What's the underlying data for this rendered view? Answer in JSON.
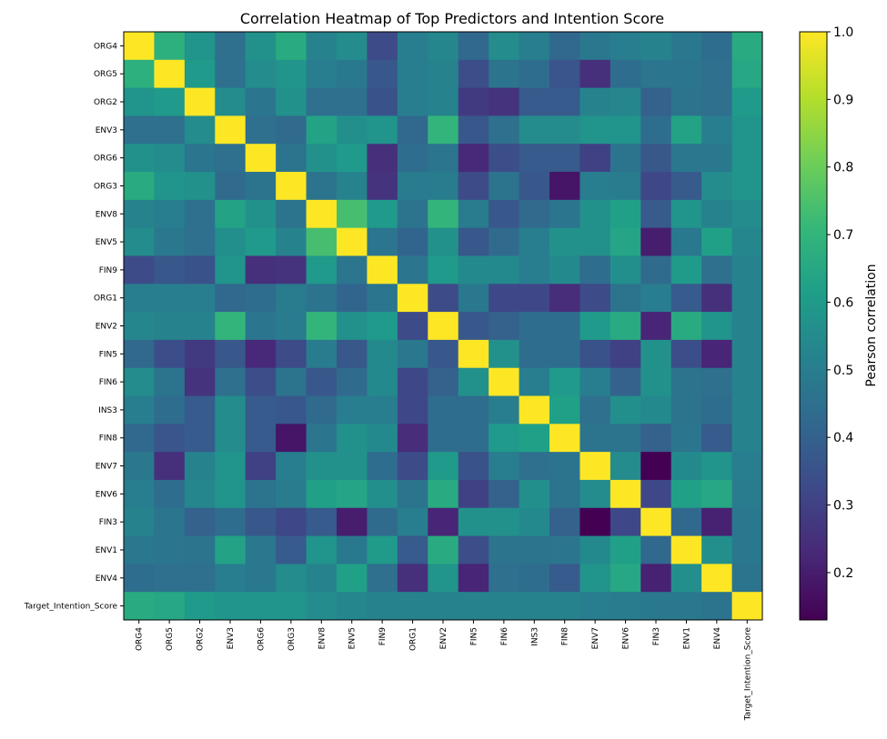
{
  "chart_data": {
    "type": "heatmap",
    "title": "Correlation Heatmap of Top Predictors and Intention Score",
    "labels": [
      "ORG4",
      "ORG5",
      "ORG2",
      "ENV3",
      "ORG6",
      "ORG3",
      "ENV8",
      "ENV5",
      "FIN9",
      "ORG1",
      "ENV2",
      "FIN5",
      "FIN6",
      "INS3",
      "FIN8",
      "ENV7",
      "ENV6",
      "FIN3",
      "ENV1",
      "ENV4",
      "Target_Intention_Score"
    ],
    "matrix": [
      [
        1.0,
        0.68,
        0.58,
        0.45,
        0.57,
        0.66,
        0.52,
        0.55,
        0.33,
        0.5,
        0.53,
        0.42,
        0.55,
        0.5,
        0.42,
        0.48,
        0.5,
        0.52,
        0.48,
        0.44,
        0.66
      ],
      [
        0.68,
        1.0,
        0.6,
        0.45,
        0.55,
        0.58,
        0.5,
        0.48,
        0.37,
        0.5,
        0.52,
        0.34,
        0.46,
        0.44,
        0.36,
        0.25,
        0.44,
        0.47,
        0.47,
        0.45,
        0.65
      ],
      [
        0.58,
        0.6,
        1.0,
        0.55,
        0.47,
        0.57,
        0.45,
        0.45,
        0.35,
        0.5,
        0.52,
        0.28,
        0.26,
        0.38,
        0.38,
        0.52,
        0.53,
        0.4,
        0.46,
        0.45,
        0.6
      ],
      [
        0.45,
        0.45,
        0.55,
        1.0,
        0.45,
        0.43,
        0.63,
        0.56,
        0.58,
        0.42,
        0.7,
        0.37,
        0.45,
        0.55,
        0.55,
        0.58,
        0.58,
        0.44,
        0.63,
        0.5,
        0.58
      ],
      [
        0.57,
        0.55,
        0.47,
        0.45,
        1.0,
        0.46,
        0.57,
        0.6,
        0.25,
        0.44,
        0.47,
        0.23,
        0.34,
        0.38,
        0.38,
        0.3,
        0.46,
        0.37,
        0.48,
        0.48,
        0.58
      ],
      [
        0.66,
        0.58,
        0.57,
        0.43,
        0.46,
        1.0,
        0.46,
        0.52,
        0.26,
        0.49,
        0.49,
        0.33,
        0.46,
        0.37,
        0.18,
        0.5,
        0.49,
        0.32,
        0.38,
        0.55,
        0.58
      ],
      [
        0.52,
        0.5,
        0.45,
        0.63,
        0.57,
        0.46,
        1.0,
        0.74,
        0.6,
        0.46,
        0.7,
        0.49,
        0.37,
        0.43,
        0.47,
        0.57,
        0.62,
        0.38,
        0.58,
        0.52,
        0.55
      ],
      [
        0.55,
        0.48,
        0.45,
        0.56,
        0.6,
        0.52,
        0.74,
        1.0,
        0.47,
        0.41,
        0.57,
        0.37,
        0.43,
        0.5,
        0.57,
        0.57,
        0.64,
        0.2,
        0.48,
        0.62,
        0.53
      ],
      [
        0.33,
        0.37,
        0.35,
        0.58,
        0.25,
        0.26,
        0.6,
        0.47,
        1.0,
        0.47,
        0.6,
        0.54,
        0.54,
        0.5,
        0.54,
        0.44,
        0.56,
        0.43,
        0.6,
        0.45,
        0.52
      ],
      [
        0.5,
        0.5,
        0.5,
        0.42,
        0.44,
        0.49,
        0.46,
        0.41,
        0.47,
        1.0,
        0.33,
        0.48,
        0.32,
        0.32,
        0.24,
        0.33,
        0.46,
        0.5,
        0.38,
        0.25,
        0.52
      ],
      [
        0.53,
        0.52,
        0.52,
        0.7,
        0.47,
        0.49,
        0.7,
        0.57,
        0.6,
        0.33,
        1.0,
        0.37,
        0.4,
        0.44,
        0.44,
        0.6,
        0.66,
        0.22,
        0.66,
        0.58,
        0.52
      ],
      [
        0.42,
        0.34,
        0.28,
        0.37,
        0.23,
        0.33,
        0.49,
        0.37,
        0.54,
        0.48,
        0.37,
        1.0,
        0.57,
        0.44,
        0.44,
        0.35,
        0.3,
        0.57,
        0.34,
        0.22,
        0.52
      ],
      [
        0.55,
        0.46,
        0.26,
        0.45,
        0.34,
        0.46,
        0.37,
        0.43,
        0.54,
        0.32,
        0.4,
        0.57,
        1.0,
        0.5,
        0.6,
        0.5,
        0.4,
        0.57,
        0.46,
        0.45,
        0.52
      ],
      [
        0.5,
        0.44,
        0.38,
        0.55,
        0.38,
        0.37,
        0.43,
        0.5,
        0.5,
        0.32,
        0.44,
        0.44,
        0.5,
        1.0,
        0.62,
        0.45,
        0.56,
        0.54,
        0.46,
        0.44,
        0.52
      ],
      [
        0.42,
        0.36,
        0.38,
        0.55,
        0.38,
        0.18,
        0.47,
        0.57,
        0.54,
        0.24,
        0.44,
        0.44,
        0.6,
        0.62,
        1.0,
        0.46,
        0.46,
        0.4,
        0.47,
        0.38,
        0.52
      ],
      [
        0.48,
        0.25,
        0.52,
        0.58,
        0.3,
        0.5,
        0.57,
        0.57,
        0.44,
        0.33,
        0.6,
        0.35,
        0.5,
        0.45,
        0.46,
        1.0,
        0.55,
        0.13,
        0.54,
        0.58,
        0.5
      ],
      [
        0.5,
        0.44,
        0.53,
        0.58,
        0.46,
        0.49,
        0.62,
        0.64,
        0.56,
        0.46,
        0.66,
        0.3,
        0.4,
        0.56,
        0.46,
        0.55,
        1.0,
        0.32,
        0.62,
        0.65,
        0.49
      ],
      [
        0.52,
        0.47,
        0.4,
        0.44,
        0.37,
        0.32,
        0.38,
        0.2,
        0.43,
        0.5,
        0.22,
        0.57,
        0.57,
        0.54,
        0.4,
        0.13,
        0.32,
        1.0,
        0.42,
        0.21,
        0.48
      ],
      [
        0.48,
        0.47,
        0.46,
        0.63,
        0.48,
        0.38,
        0.58,
        0.48,
        0.6,
        0.38,
        0.66,
        0.34,
        0.46,
        0.46,
        0.47,
        0.54,
        0.62,
        0.42,
        1.0,
        0.56,
        0.48
      ],
      [
        0.44,
        0.45,
        0.45,
        0.5,
        0.48,
        0.55,
        0.52,
        0.62,
        0.45,
        0.25,
        0.58,
        0.22,
        0.45,
        0.44,
        0.38,
        0.58,
        0.65,
        0.21,
        0.56,
        1.0,
        0.46
      ],
      [
        0.66,
        0.65,
        0.6,
        0.58,
        0.58,
        0.58,
        0.55,
        0.53,
        0.52,
        0.52,
        0.52,
        0.52,
        0.52,
        0.52,
        0.52,
        0.5,
        0.49,
        0.48,
        0.48,
        0.46,
        1.0
      ]
    ],
    "colorbar": {
      "label": "Pearson correlation",
      "min": 0.13,
      "max": 1.0,
      "ticks": [
        "1.0",
        "0.9",
        "0.8",
        "0.7",
        "0.6",
        "0.5",
        "0.4",
        "0.3",
        "0.2"
      ],
      "colormap": "viridis"
    },
    "colors": [
      "#440154",
      "#482878",
      "#3e4989",
      "#31688e",
      "#26828e",
      "#1f9e89",
      "#35b779",
      "#6ece58",
      "#b5de2b",
      "#fde725"
    ]
  }
}
